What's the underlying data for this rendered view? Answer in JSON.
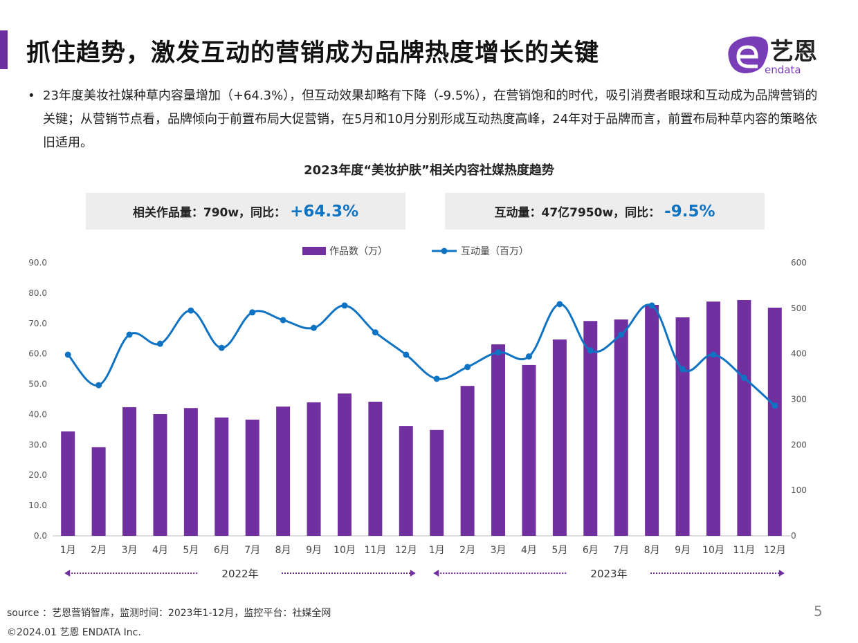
{
  "header": {
    "title": "抓住趋势，激发互动的营销成为品牌热度增长的关键",
    "logo_text": "艺恩",
    "logo_sub": "endata"
  },
  "bullet": "23年度美妆社媒种草内容量增加（+64.3%），但互动效果却略有下降（-9.5%），在营销饱和的时代，吸引消费者眼球和互动成为品牌营销的关键；从营销节点看，品牌倾向于前置布局大促营销，在5月和10月分别形成互动热度高峰，24年对于品牌而言，前置布局种草内容的策略依旧适用。",
  "kpis": [
    {
      "label": "相关作品量：790w，同比：",
      "value": "+64.3%"
    },
    {
      "label": "互动量：47亿7950w，同比：",
      "value": "-9.5%"
    }
  ],
  "chart_data": {
    "type": "bar+line",
    "title": "2023年度“美妆护肤”相关内容社媒热度趋势",
    "categories": [
      "1月",
      "2月",
      "3月",
      "4月",
      "5月",
      "6月",
      "7月",
      "8月",
      "9月",
      "10月",
      "11月",
      "12月",
      "1月",
      "2月",
      "3月",
      "4月",
      "5月",
      "6月",
      "7月",
      "8月",
      "9月",
      "10月",
      "11月",
      "12月"
    ],
    "year_groups": [
      {
        "label": "2022年",
        "count": 12
      },
      {
        "label": "2023年",
        "count": 12
      }
    ],
    "legend_position": "top",
    "series": [
      {
        "name": "作品数（万）",
        "type": "bar",
        "axis": "left",
        "color": "#7030a0",
        "values": [
          34.4,
          29.2,
          42.4,
          40.1,
          42.1,
          39.0,
          38.3,
          42.6,
          44.0,
          46.9,
          44.2,
          36.2,
          34.9,
          49.4,
          63.1,
          56.3,
          64.7,
          70.8,
          71.3,
          76.1,
          72.0,
          77.2,
          77.7,
          75.2
        ]
      },
      {
        "name": "互动量（百万）",
        "type": "line",
        "axis": "right",
        "color": "#0f73c4",
        "values": [
          398,
          331,
          442,
          422,
          495,
          413,
          491,
          474,
          457,
          506,
          447,
          398,
          345,
          371,
          403,
          394,
          509,
          407,
          442,
          506,
          366,
          398,
          347,
          286
        ]
      }
    ],
    "y_left": {
      "ylim": [
        0,
        90
      ],
      "ticks": [
        "0.0",
        "10.0",
        "20.0",
        "30.0",
        "40.0",
        "50.0",
        "60.0",
        "70.0",
        "80.0",
        "90.0"
      ]
    },
    "y_right": {
      "ylim": [
        0,
        600
      ],
      "ticks": [
        "0",
        "100",
        "200",
        "300",
        "400",
        "500",
        "600"
      ]
    },
    "grid": false
  },
  "footer": {
    "source": "source ：艺恩营销智库，监测时间：2023年1-12月，监控平台：社媒全网",
    "copyright": "©2024.01  艺恩 ENDATA Inc.",
    "page": "5"
  }
}
